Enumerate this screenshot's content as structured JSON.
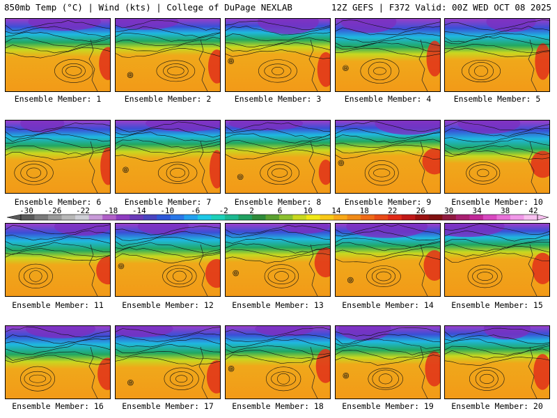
{
  "header": {
    "left": "850mb Temp (°C) | Wind (kts) | College of DuPage NEXLAB",
    "right": "12Z GEFS | F372 Valid: 00Z WED OCT 08 2025"
  },
  "members": [
    {
      "label": "Ensemble Member: 1"
    },
    {
      "label": "Ensemble Member: 2"
    },
    {
      "label": "Ensemble Member: 3"
    },
    {
      "label": "Ensemble Member: 4"
    },
    {
      "label": "Ensemble Member: 5"
    },
    {
      "label": "Ensemble Member: 6"
    },
    {
      "label": "Ensemble Member: 7"
    },
    {
      "label": "Ensemble Member: 8"
    },
    {
      "label": "Ensemble Member: 9"
    },
    {
      "label": "Ensemble Member: 10"
    },
    {
      "label": "Ensemble Member: 11"
    },
    {
      "label": "Ensemble Member: 12"
    },
    {
      "label": "Ensemble Member: 13"
    },
    {
      "label": "Ensemble Member: 14"
    },
    {
      "label": "Ensemble Member: 15"
    },
    {
      "label": "Ensemble Member: 16"
    },
    {
      "label": "Ensemble Member: 17"
    },
    {
      "label": "Ensemble Member: 18"
    },
    {
      "label": "Ensemble Member: 19"
    },
    {
      "label": "Ensemble Member: 20"
    }
  ],
  "colorbar": {
    "tick_labels": [
      "-30",
      "-26",
      "-22",
      "-18",
      "-14",
      "-10",
      "-6",
      "-2",
      "2",
      "6",
      "10",
      "14",
      "18",
      "22",
      "26",
      "30",
      "34",
      "38",
      "42"
    ],
    "colors": [
      "#5a5a5a",
      "#7a7a7a",
      "#9a9a9a",
      "#b8b8b8",
      "#cfcfd6",
      "#c89ad8",
      "#b060c8",
      "#8e3cc0",
      "#6a3ab8",
      "#4a44c0",
      "#2e58d8",
      "#2a78e8",
      "#22a0ee",
      "#1ec8e6",
      "#1ed0b8",
      "#1cb890",
      "#20a060",
      "#2e8a3a",
      "#5aa030",
      "#8cc030",
      "#c8d820",
      "#f0e818",
      "#f8c818",
      "#f8a818",
      "#f08a18",
      "#ee6a18",
      "#e84a18",
      "#e02a18",
      "#c01818",
      "#9a1010",
      "#801010",
      "#901a40",
      "#a82070",
      "#c02898",
      "#d848c0",
      "#e870d8",
      "#f098e8",
      "#f8c0f0"
    ]
  }
}
